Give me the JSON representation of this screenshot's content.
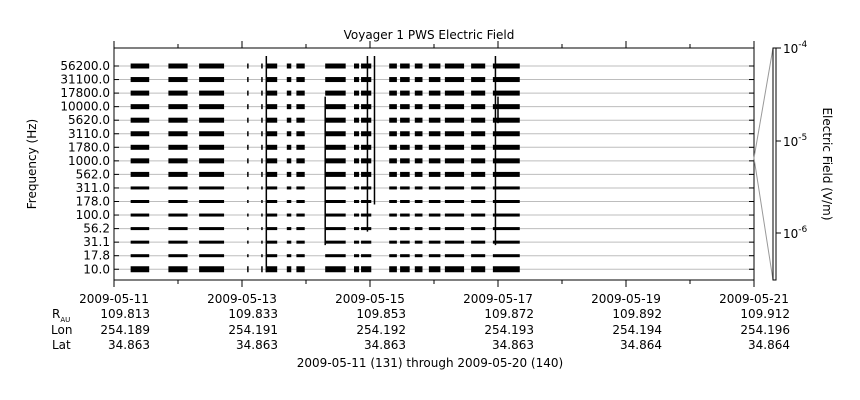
{
  "chart_data": {
    "type": "heatmap",
    "title": "Voyager 1 PWS Electric Field",
    "ylabel": "Frequency (Hz)",
    "colorbar_label": "Electric Field (V/m)",
    "colorbar_ticks": [
      {
        "base": "10",
        "exp": "-4"
      },
      {
        "base": "10",
        "exp": "-5"
      },
      {
        "base": "10",
        "exp": "-6"
      }
    ],
    "frequency_channels": [
      "56200.0",
      "31100.0",
      "17800.0",
      "10000.0",
      "5620.0",
      "3110.0",
      "1780.0",
      "1000.0",
      "562.0",
      "311.0",
      "178.0",
      "100.0",
      "56.2",
      "31.1",
      "17.8",
      "10.0"
    ],
    "x_range_days": [
      "2009-05-11",
      "2009-05-21"
    ],
    "x_tick_dates": [
      "2009-05-11",
      "2009-05-13",
      "2009-05-15",
      "2009-05-17",
      "2009-05-19",
      "2009-05-21"
    ],
    "ephemeris": {
      "labels": {
        "r": "R",
        "r_sub": "AU",
        "lon": "Lon",
        "lat": "Lat"
      },
      "r_au": [
        "109.813",
        "109.833",
        "109.853",
        "109.872",
        "109.892",
        "109.912"
      ],
      "lon": [
        "254.189",
        "254.191",
        "254.192",
        "254.193",
        "254.194",
        "254.196"
      ],
      "lat": [
        "34.863",
        "34.863",
        "34.863",
        "34.863",
        "34.864",
        "34.864"
      ]
    },
    "footer": "2009-05-11 (131) through 2009-05-20 (140)",
    "data_segments_days": [
      [
        0.26,
        0.55
      ],
      [
        0.85,
        1.15
      ],
      [
        1.33,
        1.72
      ],
      [
        2.08,
        2.1
      ],
      [
        2.3,
        2.32
      ],
      [
        2.38,
        2.55
      ],
      [
        2.7,
        2.77
      ],
      [
        2.85,
        2.98
      ],
      [
        3.3,
        3.62
      ],
      [
        3.75,
        3.83
      ],
      [
        3.86,
        4.02
      ],
      [
        4.3,
        4.42
      ],
      [
        4.47,
        4.62
      ],
      [
        4.7,
        4.82
      ],
      [
        4.92,
        5.1
      ],
      [
        5.17,
        5.47
      ],
      [
        5.58,
        5.8
      ],
      [
        5.92,
        6.34
      ]
    ],
    "spikes": [
      {
        "day": 2.38,
        "top": "56200.0",
        "bottom": "10.0"
      },
      {
        "day": 3.3,
        "top": "10000.0",
        "bottom": "31.1"
      },
      {
        "day": 3.96,
        "top": "56200.0",
        "bottom": "56.2"
      },
      {
        "day": 4.07,
        "top": "56200.0",
        "bottom": "178.0"
      },
      {
        "day": 6.0,
        "top": "10000.0",
        "bottom": "5620.0"
      },
      {
        "day": 5.96,
        "top": "56200.0",
        "bottom": "31.1"
      }
    ]
  }
}
